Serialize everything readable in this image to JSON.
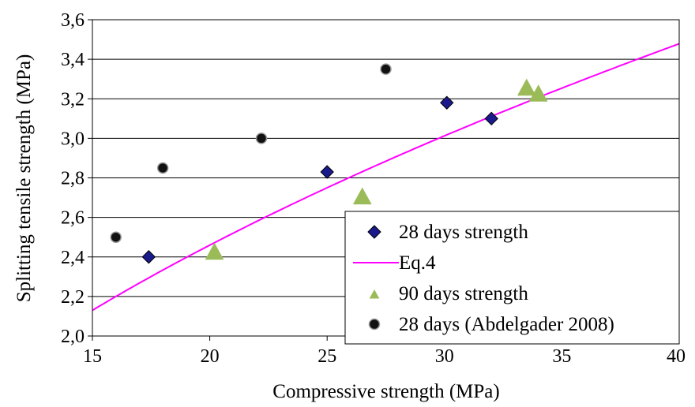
{
  "chart_data": {
    "type": "scatter",
    "xlabel": "Compressive strength (MPa)",
    "ylabel": "Splitting tensile strength (MPa)",
    "xlim": [
      15,
      40
    ],
    "ylim": [
      2.0,
      3.6
    ],
    "x_ticks": [
      "15",
      "20",
      "25",
      "30",
      "35",
      "40"
    ],
    "y_ticks": [
      "2,0",
      "2,2",
      "2,4",
      "2,6",
      "2,8",
      "3,0",
      "3,2",
      "3,4",
      "3,6"
    ],
    "grid": "horizontal",
    "legend_position": "bottom-right",
    "series": [
      {
        "name": "28 days strength",
        "kind": "scatter",
        "marker": "diamond",
        "color": "#1a1a8c",
        "points": [
          [
            17.4,
            2.4
          ],
          [
            25.0,
            2.83
          ],
          [
            30.1,
            3.18
          ],
          [
            32.0,
            3.1
          ]
        ]
      },
      {
        "name": "Eq.4",
        "kind": "line",
        "color": "#ff00ff",
        "equation": "y = 0.55 * x^0.5"
      },
      {
        "name": "90 days strength",
        "kind": "scatter",
        "marker": "triangle",
        "color": "#9bbb59",
        "points": [
          [
            20.2,
            2.42
          ],
          [
            26.5,
            2.7
          ],
          [
            33.5,
            3.25
          ],
          [
            34.0,
            3.22
          ]
        ]
      },
      {
        "name": "28 days (Abdelgader 2008)",
        "kind": "scatter",
        "marker": "circle",
        "color": "#111111",
        "points": [
          [
            16.0,
            2.5
          ],
          [
            18.0,
            2.85
          ],
          [
            22.2,
            3.0
          ],
          [
            27.5,
            3.35
          ]
        ]
      }
    ]
  }
}
